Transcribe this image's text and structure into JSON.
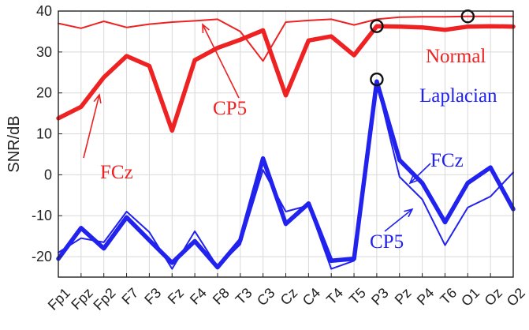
{
  "chart_data": {
    "type": "line",
    "title": "",
    "xlabel": "",
    "ylabel": "SNR/dB",
    "ylim": [
      -25,
      40
    ],
    "yticks": [
      -20,
      -10,
      0,
      10,
      20,
      30,
      40
    ],
    "grid": true,
    "legend": "none",
    "categories": [
      "Fp1",
      "Fpz",
      "Fp2",
      "F7",
      "F3",
      "Fz",
      "F4",
      "F8",
      "T3",
      "C3",
      "Cz",
      "C4",
      "T4",
      "T5",
      "P3",
      "Pz",
      "P4",
      "T6",
      "O1",
      "Oz",
      "O2"
    ],
    "series": [
      {
        "name": "",
        "group": "Normal",
        "variant": "CP5",
        "color": "#ee2222",
        "width": 2,
        "values": [
          37,
          35.8,
          37.5,
          36,
          36.8,
          37.3,
          37.6,
          38,
          35,
          27.8,
          37.3,
          37.7,
          38,
          36.6,
          38,
          38.5,
          38.6,
          38.6,
          38.7,
          38.7,
          38.7
        ]
      },
      {
        "name": "",
        "group": "Normal",
        "variant": "FCz",
        "color": "#ee2222",
        "width": 5.5,
        "values": [
          13.8,
          16.6,
          23.8,
          29,
          26.6,
          10.8,
          28,
          31,
          33,
          35.3,
          19.4,
          32.8,
          33.8,
          29.2,
          36.3,
          36.2,
          36,
          35.4,
          36.2,
          36.3,
          36.2
        ]
      },
      {
        "name": "",
        "group": "Laplacian",
        "variant": "CP5",
        "color": "#2222ee",
        "width": 2,
        "values": [
          -19,
          -15.5,
          -16.5,
          -9,
          -14,
          -23,
          -13.8,
          -22.5,
          -17,
          1.2,
          -9,
          -7.5,
          -23,
          -21,
          22.5,
          -0.5,
          -6,
          -17.2,
          -8,
          -5.3,
          0.6
        ]
      },
      {
        "name": "",
        "group": "Laplacian",
        "variant": "FCz",
        "color": "#2222ee",
        "width": 5.5,
        "values": [
          -20.5,
          -13,
          -18,
          -10.4,
          -16,
          -21.5,
          -16.2,
          -22.6,
          -16,
          4,
          -12,
          -7,
          -21,
          -20.5,
          22.8,
          3.6,
          -2,
          -11.6,
          -2,
          1.8,
          -8.4
        ]
      }
    ],
    "markers": [
      {
        "category": "P3",
        "value": 36.3
      },
      {
        "category": "O1",
        "value": 38.7
      },
      {
        "category": "P3",
        "value": 23.3
      }
    ],
    "labels": {
      "normal": "Normal",
      "laplacian": "Laplacian",
      "cp5_red": "CP5",
      "fcz_red": "FCz",
      "fcz_blue": "FCz",
      "cp5_blue": "CP5"
    }
  }
}
